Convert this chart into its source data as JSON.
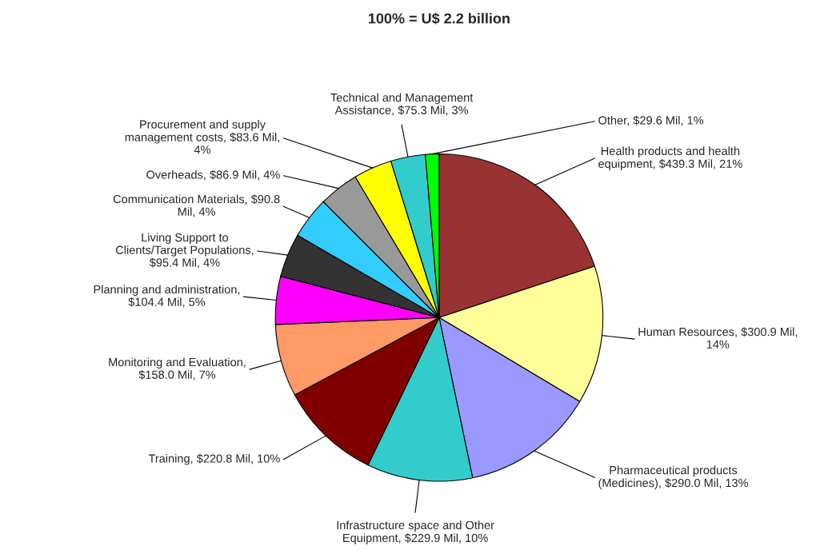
{
  "chart_data": {
    "type": "pie",
    "title": "100% = U$ 2.2 billion",
    "categories": [
      "Health products and health equipment, $439.3 Mil, 21%",
      "Human Resources, $300.9 Mil, 14%",
      "Pharmaceutical products (Medicines), $290.0 Mil, 13%",
      "Infrastructure space and Other Equipment, $229.9 Mil, 10%",
      "Training, $220.8 Mil, 10%",
      "Monitoring and Evaluation, $158.0 Mil, 7%",
      "Planning and administration, $104.4 Mil, 5%",
      "Living Support to Clients/Target Populations, $95.4 Mil, 4%",
      "Communication Materials, $90.8 Mil, 4%",
      "Overheads, $86.9 Mil, 4%",
      "Procurement and supply management costs, $83.6 Mil, 4%",
      "Technical and Management Assistance, $75.3 Mil, 3%",
      "Other, $29.6 Mil, 1%"
    ],
    "values": [
      439.3,
      300.9,
      290.0,
      229.9,
      220.8,
      158.0,
      104.4,
      95.4,
      90.8,
      86.9,
      83.6,
      75.3,
      29.6
    ],
    "colors": [
      "#993333",
      "#ffff99",
      "#9999ff",
      "#33cccc",
      "#800000",
      "#ff9966",
      "#ff00ff",
      "#333333",
      "#33ccff",
      "#999999",
      "#ffff00",
      "#33cccc",
      "#00ff00"
    ],
    "legend": false
  }
}
